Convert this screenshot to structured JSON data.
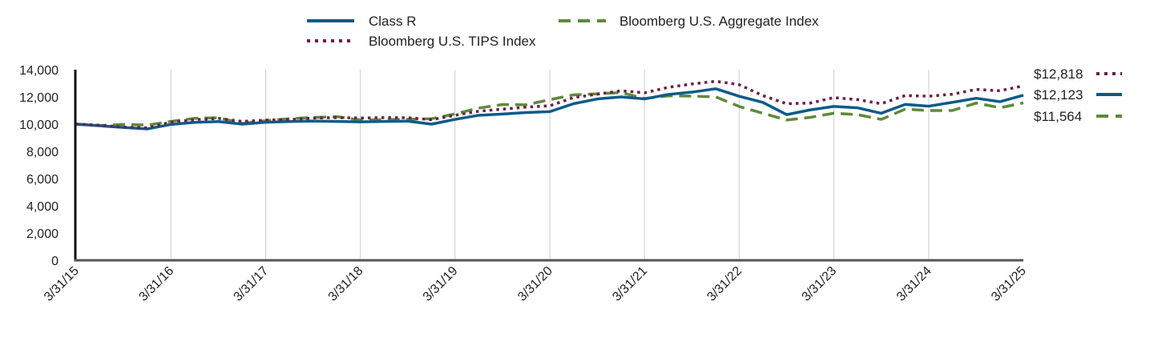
{
  "chart_data": {
    "type": "line",
    "title": "",
    "xlabel": "",
    "ylabel": "",
    "ylim": [
      0,
      14000
    ],
    "yticks": [
      0,
      2000,
      4000,
      6000,
      8000,
      10000,
      12000,
      14000
    ],
    "ytick_labels": [
      "0",
      "2,000",
      "4,000",
      "6,000",
      "8,000",
      "10,000",
      "12,000",
      "14,000"
    ],
    "xticks": [
      "3/31/15",
      "3/31/16",
      "3/31/17",
      "3/31/18",
      "3/31/19",
      "3/31/20",
      "3/31/21",
      "3/31/22",
      "3/31/23",
      "3/31/24",
      "3/31/25"
    ],
    "xlim": [
      "2015-03-31",
      "2025-03-31"
    ],
    "grid": "vertical",
    "legend_position": "top",
    "series": [
      {
        "name": "Class R",
        "color": "#0b5a8a",
        "style": "solid",
        "end_label": "$12,123",
        "points": [
          [
            "2015-03-31",
            10000
          ],
          [
            "2015-06-30",
            9880
          ],
          [
            "2015-09-30",
            9760
          ],
          [
            "2015-12-31",
            9650
          ],
          [
            "2016-03-31",
            9980
          ],
          [
            "2016-06-30",
            10130
          ],
          [
            "2016-09-30",
            10190
          ],
          [
            "2016-12-31",
            10000
          ],
          [
            "2017-03-31",
            10140
          ],
          [
            "2017-06-30",
            10190
          ],
          [
            "2017-09-30",
            10230
          ],
          [
            "2017-12-31",
            10200
          ],
          [
            "2018-03-31",
            10170
          ],
          [
            "2018-06-30",
            10200
          ],
          [
            "2018-09-30",
            10220
          ],
          [
            "2018-12-31",
            10000
          ],
          [
            "2019-03-31",
            10350
          ],
          [
            "2019-06-30",
            10650
          ],
          [
            "2019-09-30",
            10740
          ],
          [
            "2019-12-31",
            10850
          ],
          [
            "2020-03-31",
            10920
          ],
          [
            "2020-06-30",
            11500
          ],
          [
            "2020-09-30",
            11850
          ],
          [
            "2020-12-31",
            12000
          ],
          [
            "2021-03-31",
            11850
          ],
          [
            "2021-06-30",
            12180
          ],
          [
            "2021-09-30",
            12350
          ],
          [
            "2021-12-31",
            12600
          ],
          [
            "2022-03-31",
            12050
          ],
          [
            "2022-06-30",
            11600
          ],
          [
            "2022-09-30",
            10700
          ],
          [
            "2022-12-31",
            11050
          ],
          [
            "2023-03-31",
            11300
          ],
          [
            "2023-06-30",
            11200
          ],
          [
            "2023-09-30",
            10800
          ],
          [
            "2023-12-31",
            11450
          ],
          [
            "2024-03-31",
            11320
          ],
          [
            "2024-06-30",
            11600
          ],
          [
            "2024-09-30",
            11900
          ],
          [
            "2024-12-31",
            11650
          ],
          [
            "2025-03-31",
            12123
          ]
        ]
      },
      {
        "name": "Bloomberg U.S. Aggregate Index",
        "color": "#5e8a3a",
        "style": "dashed",
        "end_label": "$11,564",
        "points": [
          [
            "2015-03-31",
            10000
          ],
          [
            "2015-06-30",
            9900
          ],
          [
            "2015-09-30",
            9980
          ],
          [
            "2015-12-31",
            9930
          ],
          [
            "2016-03-31",
            10200
          ],
          [
            "2016-06-30",
            10430
          ],
          [
            "2016-09-30",
            10470
          ],
          [
            "2016-12-31",
            10050
          ],
          [
            "2017-03-31",
            10250
          ],
          [
            "2017-06-30",
            10400
          ],
          [
            "2017-09-30",
            10490
          ],
          [
            "2017-12-31",
            10550
          ],
          [
            "2018-03-31",
            10300
          ],
          [
            "2018-06-30",
            10330
          ],
          [
            "2018-09-30",
            10350
          ],
          [
            "2018-12-31",
            10400
          ],
          [
            "2019-03-31",
            10750
          ],
          [
            "2019-06-30",
            11180
          ],
          [
            "2019-09-30",
            11440
          ],
          [
            "2019-12-31",
            11420
          ],
          [
            "2020-03-31",
            11800
          ],
          [
            "2020-06-30",
            12150
          ],
          [
            "2020-09-30",
            12230
          ],
          [
            "2020-12-31",
            12320
          ],
          [
            "2021-03-31",
            11880
          ],
          [
            "2021-06-30",
            12080
          ],
          [
            "2021-09-30",
            12060
          ],
          [
            "2021-12-31",
            12000
          ],
          [
            "2022-03-31",
            11300
          ],
          [
            "2022-06-30",
            10800
          ],
          [
            "2022-09-30",
            10300
          ],
          [
            "2022-12-31",
            10500
          ],
          [
            "2023-03-31",
            10800
          ],
          [
            "2023-06-30",
            10700
          ],
          [
            "2023-09-30",
            10350
          ],
          [
            "2023-12-31",
            11100
          ],
          [
            "2024-03-31",
            11000
          ],
          [
            "2024-06-30",
            11000
          ],
          [
            "2024-09-30",
            11550
          ],
          [
            "2024-12-31",
            11200
          ],
          [
            "2025-03-31",
            11564
          ]
        ]
      },
      {
        "name": "Bloomberg U.S. TIPS Index",
        "color": "#6b2044",
        "style": "dotted",
        "end_label": "$12,818",
        "points": [
          [
            "2015-03-31",
            10000
          ],
          [
            "2015-06-30",
            9920
          ],
          [
            "2015-09-30",
            9780
          ],
          [
            "2015-12-31",
            9730
          ],
          [
            "2016-03-31",
            10150
          ],
          [
            "2016-06-30",
            10330
          ],
          [
            "2016-09-30",
            10420
          ],
          [
            "2016-12-31",
            10200
          ],
          [
            "2017-03-31",
            10300
          ],
          [
            "2017-06-30",
            10340
          ],
          [
            "2017-09-30",
            10450
          ],
          [
            "2017-12-31",
            10480
          ],
          [
            "2018-03-31",
            10450
          ],
          [
            "2018-06-30",
            10480
          ],
          [
            "2018-09-30",
            10470
          ],
          [
            "2018-12-31",
            10330
          ],
          [
            "2019-03-31",
            10650
          ],
          [
            "2019-06-30",
            10950
          ],
          [
            "2019-09-30",
            11100
          ],
          [
            "2019-12-31",
            11250
          ],
          [
            "2020-03-31",
            11350
          ],
          [
            "2020-06-30",
            11950
          ],
          [
            "2020-09-30",
            12200
          ],
          [
            "2020-12-31",
            12450
          ],
          [
            "2021-03-31",
            12300
          ],
          [
            "2021-06-30",
            12700
          ],
          [
            "2021-09-30",
            12950
          ],
          [
            "2021-12-31",
            13150
          ],
          [
            "2022-03-31",
            12900
          ],
          [
            "2022-06-30",
            12100
          ],
          [
            "2022-09-30",
            11500
          ],
          [
            "2022-12-31",
            11550
          ],
          [
            "2023-03-31",
            11950
          ],
          [
            "2023-06-30",
            11800
          ],
          [
            "2023-09-30",
            11500
          ],
          [
            "2023-12-31",
            12100
          ],
          [
            "2024-03-31",
            12050
          ],
          [
            "2024-06-30",
            12200
          ],
          [
            "2024-09-30",
            12550
          ],
          [
            "2024-12-31",
            12450
          ],
          [
            "2025-03-31",
            12818
          ]
        ]
      }
    ]
  }
}
